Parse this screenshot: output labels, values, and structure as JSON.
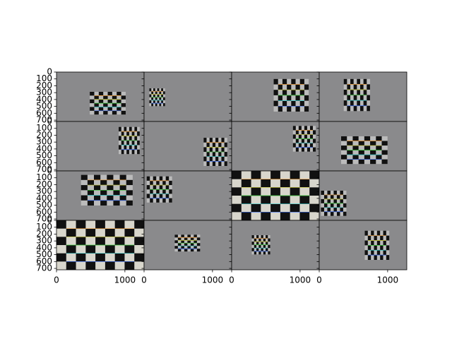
{
  "chart_data": {
    "type": "image_grid",
    "rows": 4,
    "cols": 4,
    "xlim": [
      0,
      1280
    ],
    "ylim": [
      720,
      0
    ],
    "xticks": [
      0,
      1000
    ],
    "yticks": [
      0,
      100,
      200,
      300,
      400,
      500,
      600,
      700
    ]
  }
}
